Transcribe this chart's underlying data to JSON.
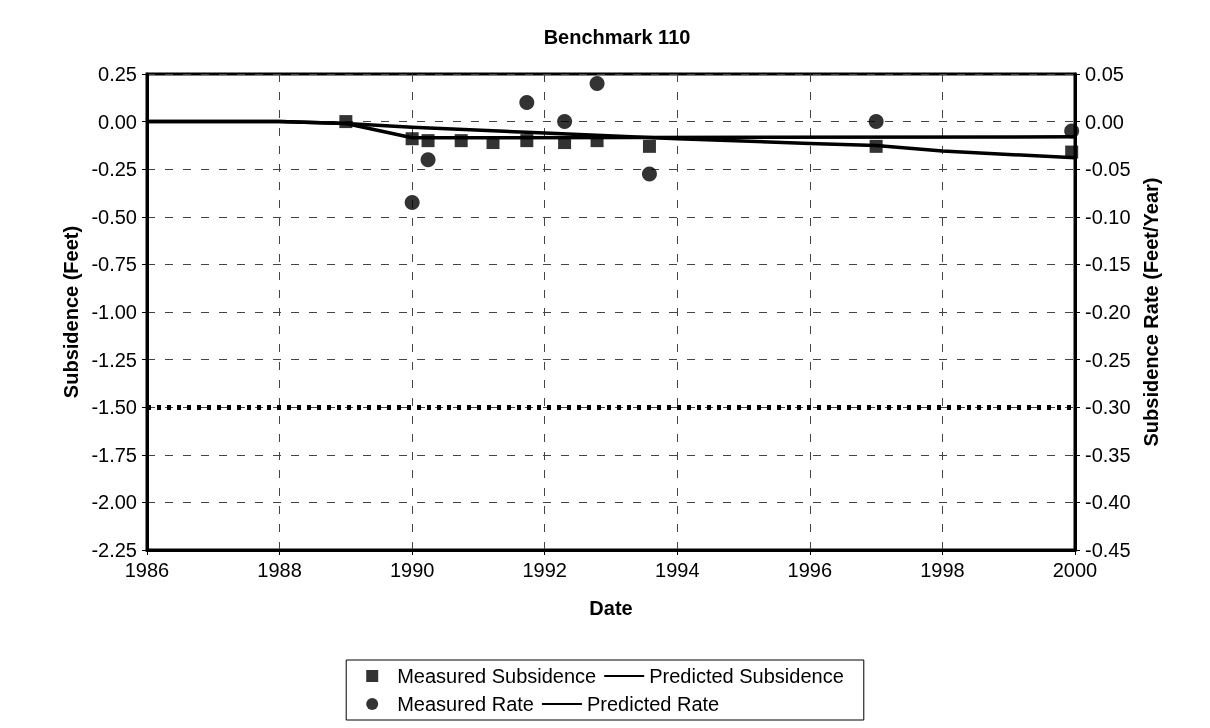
{
  "chart_data": {
    "type": "scatter",
    "title": "Benchmark 110",
    "xlabel": "Date",
    "ylabel": "Subsidence (Feet)",
    "y2label": "Subsidence Rate (Feet/Year)",
    "xlim": [
      1986,
      2000
    ],
    "xticks": [
      1986,
      1988,
      1990,
      1992,
      1994,
      1996,
      1998,
      2000
    ],
    "ylim": [
      -2.25,
      0.25
    ],
    "yticks": [
      {
        "value": 0.25,
        "label": "0.25"
      },
      {
        "value": 0,
        "label": "0.00"
      },
      {
        "value": -0.25,
        "label": "-0.25"
      },
      {
        "value": -0.5,
        "label": "-0.50"
      },
      {
        "value": -0.75,
        "label": "-0.75"
      },
      {
        "value": -1,
        "label": "-1.00"
      },
      {
        "value": -1.25,
        "label": "-1.25"
      },
      {
        "value": -1.5,
        "label": "-1.50"
      },
      {
        "value": -1.75,
        "label": "-1.75"
      },
      {
        "value": -2,
        "label": "-2.00"
      },
      {
        "value": -2.25,
        "label": "-2.25"
      }
    ],
    "y2lim": [
      -0.45,
      0.05
    ],
    "y2ticks": [
      {
        "value": 0.05,
        "label": "0.05"
      },
      {
        "value": 0,
        "label": "0.00"
      },
      {
        "value": -0.05,
        "label": "-0.05"
      },
      {
        "value": -0.1,
        "label": "-0.10"
      },
      {
        "value": -0.15,
        "label": "-0.15"
      },
      {
        "value": -0.2,
        "label": "-0.20"
      },
      {
        "value": -0.25,
        "label": "-0.25"
      },
      {
        "value": -0.3,
        "label": "-0.30"
      },
      {
        "value": -0.35,
        "label": "-0.35"
      },
      {
        "value": -0.4,
        "label": "-0.40"
      },
      {
        "value": -0.45,
        "label": "-0.45"
      }
    ],
    "grid": true,
    "legend": "bottom",
    "ref_lines": [
      {
        "axis": "y",
        "value": -1.5,
        "color": "#000000",
        "line_style": "dotted"
      }
    ],
    "series": [
      {
        "name": "Measured Subsidence",
        "marker": "square",
        "color": "#000000",
        "x": [
          1989.0,
          1990.0,
          1990.24,
          1990.74,
          1991.22,
          1991.73,
          1992.3,
          1992.79,
          1993.58,
          1997.0,
          1999.95
        ],
        "values": [
          0.0,
          -0.09,
          -0.1,
          -0.1,
          -0.11,
          -0.1,
          -0.11,
          -0.1,
          -0.13,
          -0.13,
          -0.16
        ]
      },
      {
        "name": "Predicted Subsidence",
        "type": "line",
        "marker": "none",
        "color": "#000000",
        "x": [
          1986,
          1988,
          1989,
          1990,
          1992,
          1994,
          1996,
          1997,
          1998,
          2000
        ],
        "values": [
          0,
          0,
          -0.01,
          -0.03,
          -0.06,
          -0.09,
          -0.115,
          -0.125,
          -0.155,
          -0.19
        ]
      },
      {
        "name": "Measured Rate",
        "axis": "y2",
        "marker": "circle",
        "color": "#000000",
        "x": [
          1990.0,
          1990.24,
          1991.73,
          1992.3,
          1992.79,
          1993.58,
          1997.0,
          1999.95
        ],
        "values": [
          -0.085,
          -0.04,
          0.02,
          0.0,
          0.04,
          -0.055,
          0.0,
          -0.01
        ]
      },
      {
        "name": "Predicted Rate",
        "type": "line",
        "axis": "y2",
        "marker": "none",
        "color": "#000000",
        "x": [
          1986,
          1988,
          1989,
          1990,
          2000
        ],
        "values": [
          0,
          0,
          -0.002,
          -0.017,
          -0.016
        ]
      }
    ]
  }
}
